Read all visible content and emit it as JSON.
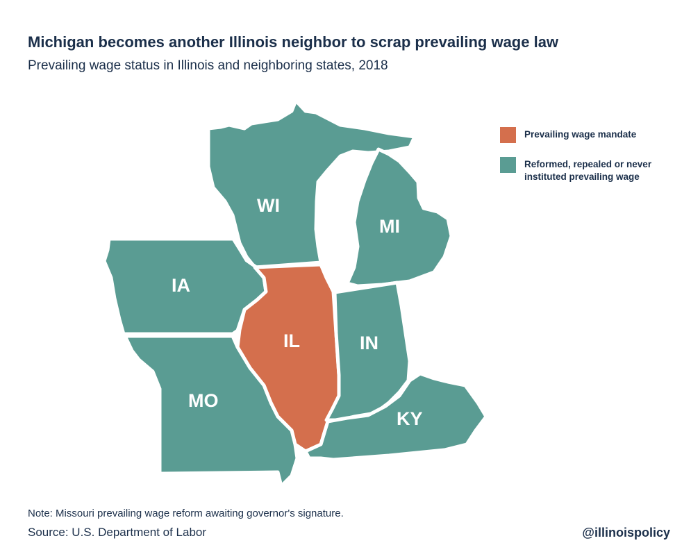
{
  "header": {
    "title": "Michigan becomes another Illinois neighbor to scrap prevailing wage law",
    "subtitle": "Prevailing wage status in Illinois and neighboring states, 2018"
  },
  "legend": {
    "items": [
      {
        "label": "Prevailing wage mandate",
        "color": "#d46f4d"
      },
      {
        "label": "Reformed, repealed or never\ninstituted prevailing wage",
        "color": "#5a9c93"
      }
    ]
  },
  "map": {
    "states": [
      {
        "code": "WI",
        "label": "WI",
        "status": "reformed"
      },
      {
        "code": "MI",
        "label": "MI",
        "status": "reformed"
      },
      {
        "code": "IA",
        "label": "IA",
        "status": "reformed"
      },
      {
        "code": "IL",
        "label": "IL",
        "status": "mandate"
      },
      {
        "code": "IN",
        "label": "IN",
        "status": "reformed"
      },
      {
        "code": "MO",
        "label": "MO",
        "status": "reformed"
      },
      {
        "code": "KY",
        "label": "KY",
        "status": "reformed"
      }
    ]
  },
  "footer": {
    "note": "Note: Missouri prevailing wage reform awaiting governor's signature.",
    "source": "Source: U.S. Department of Labor",
    "handle": "@illinoispolicy"
  }
}
